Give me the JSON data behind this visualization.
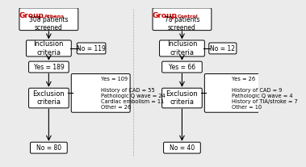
{
  "left_group": {
    "title": "Group",
    "subtitle": "Athens",
    "patients": "308 patients\nscreened",
    "no1": "No = 119",
    "yes1": "Yes = 189",
    "exclusion_label": "Exclusion\ncriteria",
    "inclusion_label": "Inclusion\ncriteria",
    "yes2_box": "Yes = 109\n\nHistory of CAD = 55\nPathologic Q wave = 24\nCardiac embolism = 11\nOther = 26",
    "no2": "No = 80"
  },
  "right_group": {
    "title": "Group",
    "subtitle": "Control",
    "patients": "78 patients\nscreened",
    "no1": "No = 12",
    "yes1": "Yes = 66",
    "exclusion_label": "Exclusion\ncriteria",
    "inclusion_label": "Inclusion\ncriteria",
    "yes2_box": "Yes = 26\n\nHistory of CAD = 9\nPathologic Q wave = 4\nHistory of TIA/stroke = 7\nOther = 10",
    "no2": "No = 40"
  },
  "box_color": "#ffffff",
  "box_edge_color": "#000000",
  "line_color": "#000000",
  "text_color": "#000000",
  "title_color": "#cc0000",
  "bg_color": "#ebebeb"
}
